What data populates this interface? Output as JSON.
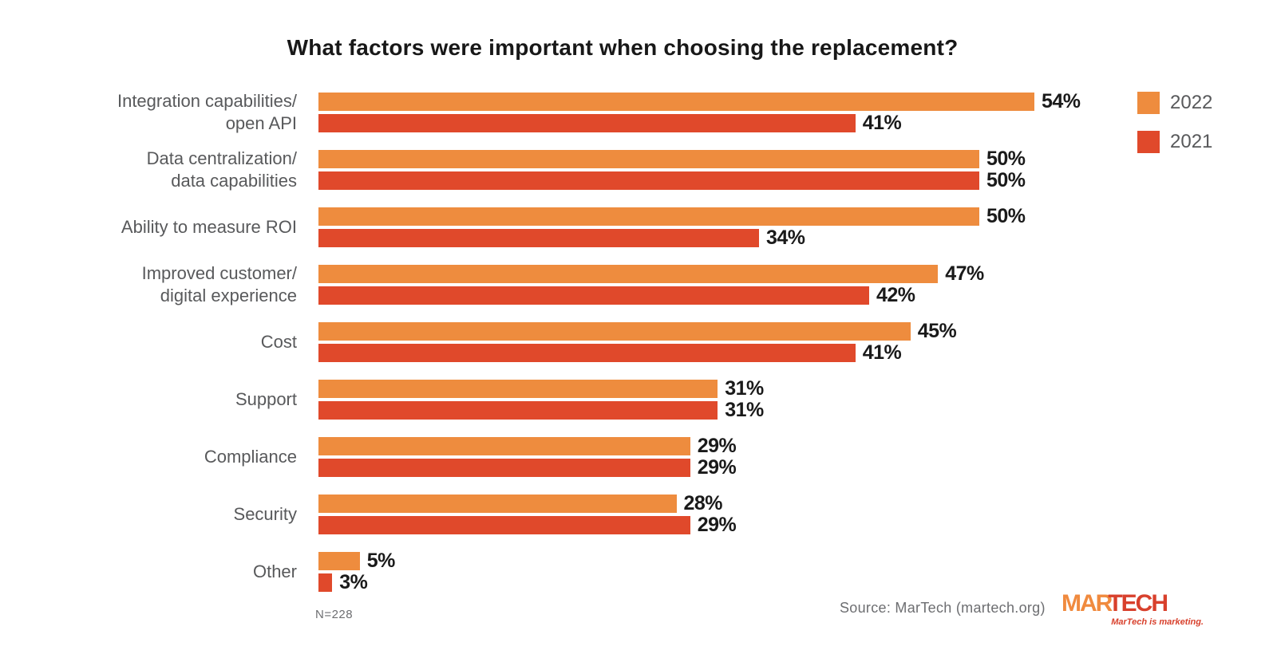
{
  "chart_data": {
    "type": "bar",
    "orientation": "horizontal",
    "title": "What factors were important when choosing the replacement?",
    "categories": [
      "Integration capabilities/\nopen API",
      "Data centralization/\ndata capabilities",
      "Ability to measure ROI",
      "Improved customer/\ndigital experience",
      "Cost",
      "Support",
      "Compliance",
      "Security",
      "Other"
    ],
    "series": [
      {
        "name": "2022",
        "color": "#EE8C3E",
        "values": [
          54,
          50,
          50,
          47,
          45,
          31,
          29,
          28,
          5
        ]
      },
      {
        "name": "2021",
        "color": "#E0492B",
        "values": [
          41,
          50,
          34,
          42,
          41,
          31,
          29,
          29,
          3
        ]
      }
    ],
    "value_suffix": "%",
    "xlim": [
      0,
      58
    ],
    "grid": false,
    "legend_position": "top-right",
    "value_label_color": "#1A1A1A",
    "category_label_color": "#58595B"
  },
  "notes": {
    "sample_size": "N=228",
    "source": "Source: MarTech (martech.org)"
  },
  "logo": {
    "part1": "MAR",
    "part2": "TECH",
    "tagline": "MarTech is marketing."
  }
}
